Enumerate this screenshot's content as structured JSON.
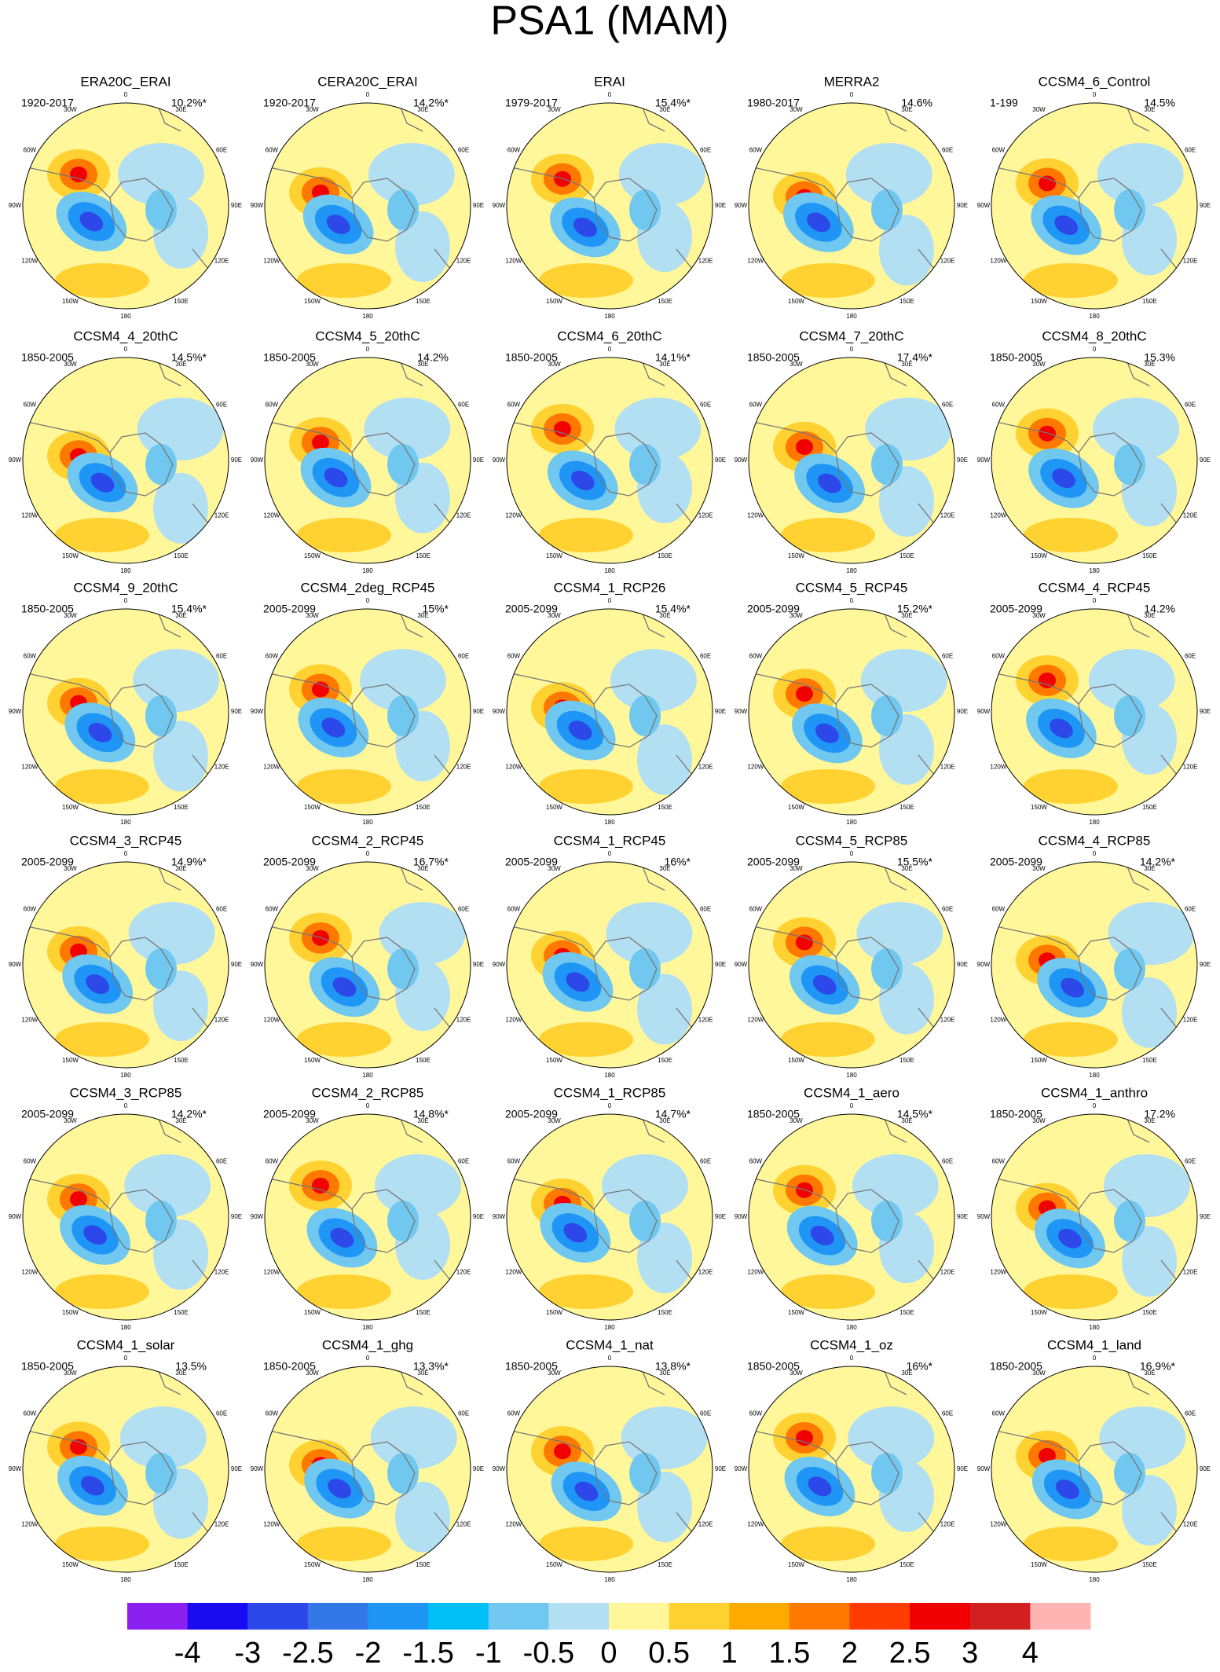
{
  "title": "PSA1 (MAM)",
  "lon_labels": [
    "0",
    "30E",
    "60E",
    "90E",
    "120E",
    "150E",
    "180",
    "150W",
    "120W",
    "90W",
    "60W",
    "30W"
  ],
  "panels": [
    {
      "name": "ERA20C_ERAI",
      "period": "1920-2017",
      "percent": "10.2%*"
    },
    {
      "name": "CERA20C_ERAI",
      "period": "1920-2017",
      "percent": "14.2%*"
    },
    {
      "name": "ERAI",
      "period": "1979-2017",
      "percent": "15.4%*"
    },
    {
      "name": "MERRA2",
      "period": "1980-2017",
      "percent": "14.6%"
    },
    {
      "name": "CCSM4_6_Control",
      "period": "1-199",
      "percent": "14.5%"
    },
    {
      "name": "CCSM4_4_20thC",
      "period": "1850-2005",
      "percent": "14.5%*"
    },
    {
      "name": "CCSM4_5_20thC",
      "period": "1850-2005",
      "percent": "14.2%"
    },
    {
      "name": "CCSM4_6_20thC",
      "period": "1850-2005",
      "percent": "14.1%*"
    },
    {
      "name": "CCSM4_7_20thC",
      "period": "1850-2005",
      "percent": "17.4%*"
    },
    {
      "name": "CCSM4_8_20thC",
      "period": "1850-2005",
      "percent": "15.3%"
    },
    {
      "name": "CCSM4_9_20thC",
      "period": "1850-2005",
      "percent": "15.4%*"
    },
    {
      "name": "CCSM4_2deg_RCP45",
      "period": "2005-2099",
      "percent": "15%*"
    },
    {
      "name": "CCSM4_1_RCP26",
      "period": "2005-2099",
      "percent": "15.4%*"
    },
    {
      "name": "CCSM4_5_RCP45",
      "period": "2005-2099",
      "percent": "15.2%*"
    },
    {
      "name": "CCSM4_4_RCP45",
      "period": "2005-2099",
      "percent": "14.2%"
    },
    {
      "name": "CCSM4_3_RCP45",
      "period": "2005-2099",
      "percent": "14.9%*"
    },
    {
      "name": "CCSM4_2_RCP45",
      "period": "2005-2099",
      "percent": "16.7%*"
    },
    {
      "name": "CCSM4_1_RCP45",
      "period": "2005-2099",
      "percent": "16%*"
    },
    {
      "name": "CCSM4_5_RCP85",
      "period": "2005-2099",
      "percent": "15.5%*"
    },
    {
      "name": "CCSM4_4_RCP85",
      "period": "2005-2099",
      "percent": "14.2%*"
    },
    {
      "name": "CCSM4_3_RCP85",
      "period": "2005-2099",
      "percent": "14.2%*"
    },
    {
      "name": "CCSM4_2_RCP85",
      "period": "2005-2099",
      "percent": "14.8%*"
    },
    {
      "name": "CCSM4_1_RCP85",
      "period": "2005-2099",
      "percent": "14.7%*"
    },
    {
      "name": "CCSM4_1_aero",
      "period": "1850-2005",
      "percent": "14.5%*"
    },
    {
      "name": "CCSM4_1_anthro",
      "period": "1850-2005",
      "percent": "17.2%"
    },
    {
      "name": "CCSM4_1_solar",
      "period": "1850-2005",
      "percent": "13.5%"
    },
    {
      "name": "CCSM4_1_ghg",
      "period": "1850-2005",
      "percent": "13.3%*"
    },
    {
      "name": "CCSM4_1_nat",
      "period": "1850-2005",
      "percent": "13.8%*"
    },
    {
      "name": "CCSM4_1_oz",
      "period": "1850-2005",
      "percent": "16%*"
    },
    {
      "name": "CCSM4_1_land",
      "period": "1850-2005",
      "percent": "16.9%*"
    }
  ],
  "colorbar": {
    "levels": [
      -4,
      -3,
      -2.5,
      -2,
      -1.5,
      -1,
      -0.5,
      0,
      0.5,
      1,
      1.5,
      2,
      2.5,
      3,
      4
    ],
    "colors": [
      "#8a1ff0",
      "#1a0cf0",
      "#2d48e8",
      "#3377e8",
      "#1f96f5",
      "#00c0f8",
      "#70c8f0",
      "#b3dff3",
      "#fff79a",
      "#ffd232",
      "#ffaa00",
      "#ff7800",
      "#ff3c00",
      "#f00000",
      "#d22020",
      "#ffb4b4"
    ]
  }
}
